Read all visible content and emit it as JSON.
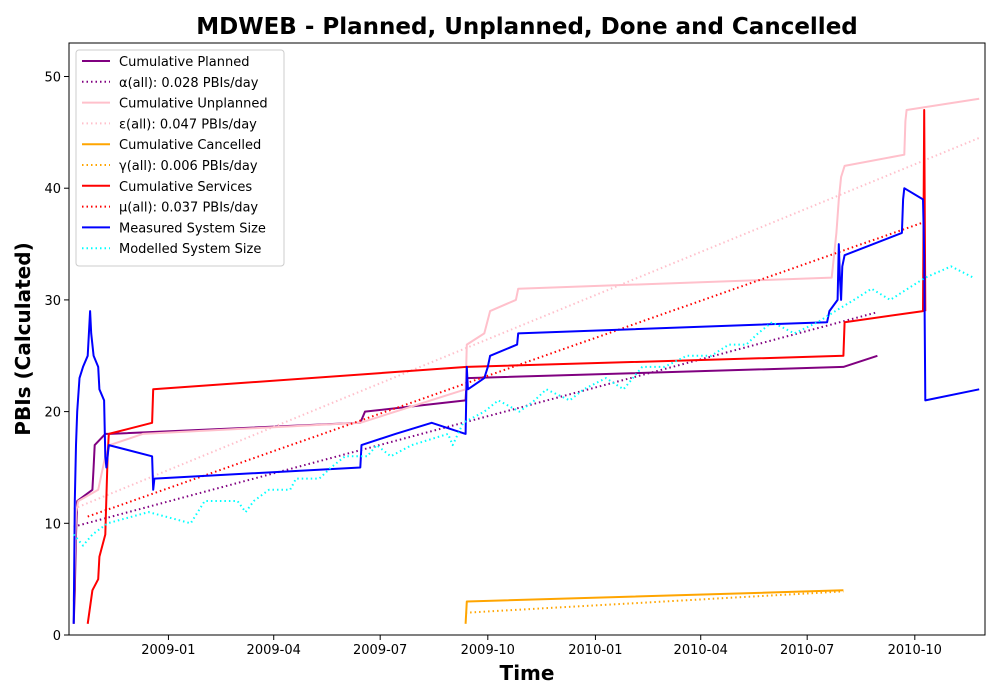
{
  "chart_data": {
    "type": "line",
    "title": "MDWEB - Planned, Unplanned, Done  and Cancelled",
    "xlabel": "Time",
    "ylabel": "PBIs (Calculated)",
    "xlim": [
      "2008-10-08",
      "2010-11-30"
    ],
    "ylim": [
      0,
      53
    ],
    "x_ticks": [
      "2009-01-01",
      "2009-04-01",
      "2009-07-01",
      "2009-10-01",
      "2010-01-01",
      "2010-04-01",
      "2010-07-01",
      "2010-10-01"
    ],
    "x_tick_labels": [
      "2009-01",
      "2009-04",
      "2009-07",
      "2009-10",
      "2010-01",
      "2010-04",
      "2010-07",
      "2010-10"
    ],
    "y_ticks": [
      0,
      10,
      20,
      30,
      40,
      50
    ],
    "y_tick_labels": [
      "0",
      "10",
      "20",
      "30",
      "40",
      "50"
    ],
    "legend_position": "top-left",
    "grid": false,
    "series": [
      {
        "name": "Cumulative Planned",
        "color": "#800080",
        "style": "solid",
        "points": [
          [
            "2008-10-12",
            1
          ],
          [
            "2008-10-13",
            4
          ],
          [
            "2008-10-14",
            9
          ],
          [
            "2008-10-15",
            12
          ],
          [
            "2008-10-28",
            13
          ],
          [
            "2008-10-29",
            15
          ],
          [
            "2008-10-30",
            17
          ],
          [
            "2008-11-08",
            18
          ],
          [
            "2008-11-12",
            18
          ],
          [
            "2009-06-14",
            19
          ],
          [
            "2009-06-18",
            20
          ],
          [
            "2009-09-12",
            21
          ],
          [
            "2009-09-13",
            23
          ],
          [
            "2010-08-01",
            24
          ],
          [
            "2010-08-30",
            25
          ]
        ]
      },
      {
        "name": "α(all): 0.028 PBIs/day",
        "color": "#800080",
        "style": "dotted",
        "points": [
          [
            "2008-10-12",
            9.7
          ],
          [
            "2010-08-30",
            28.9
          ]
        ]
      },
      {
        "name": "Cumulative Unplanned",
        "color": "#ffc0cb",
        "style": "solid",
        "points": [
          [
            "2008-10-12",
            3
          ],
          [
            "2008-10-14",
            11
          ],
          [
            "2008-10-16",
            12
          ],
          [
            "2008-11-02",
            13
          ],
          [
            "2008-11-08",
            16
          ],
          [
            "2008-11-12",
            17
          ],
          [
            "2008-12-10",
            18
          ],
          [
            "2009-06-14",
            19
          ],
          [
            "2009-09-12",
            22
          ],
          [
            "2009-09-13",
            26
          ],
          [
            "2009-09-28",
            27
          ],
          [
            "2009-10-03",
            29
          ],
          [
            "2009-10-25",
            30
          ],
          [
            "2009-10-27",
            31
          ],
          [
            "2010-07-22",
            32
          ],
          [
            "2010-07-26",
            36
          ],
          [
            "2010-07-28",
            39
          ],
          [
            "2010-07-30",
            41
          ],
          [
            "2010-08-02",
            42
          ],
          [
            "2010-09-22",
            43
          ],
          [
            "2010-09-23",
            46
          ],
          [
            "2010-09-24",
            47
          ],
          [
            "2010-11-25",
            48
          ]
        ]
      },
      {
        "name": "ε(all): 0.047 PBIs/day",
        "color": "#ffc0cb",
        "style": "dotted",
        "points": [
          [
            "2008-10-12",
            11.3
          ],
          [
            "2010-11-25",
            44.5
          ]
        ]
      },
      {
        "name": "Cumulative Cancelled",
        "color": "#ffa500",
        "style": "solid",
        "points": [
          [
            "2009-09-12",
            1
          ],
          [
            "2009-09-13",
            3
          ],
          [
            "2010-08-01",
            4
          ]
        ]
      },
      {
        "name": "γ(all): 0.006 PBIs/day",
        "color": "#ffa500",
        "style": "dotted",
        "points": [
          [
            "2009-09-12",
            2
          ],
          [
            "2010-08-01",
            3.9
          ]
        ]
      },
      {
        "name": "Cumulative Services",
        "color": "#ff0000",
        "style": "solid",
        "points": [
          [
            "2008-10-24",
            1
          ],
          [
            "2008-10-28",
            4
          ],
          [
            "2008-11-02",
            5
          ],
          [
            "2008-11-03",
            7
          ],
          [
            "2008-11-08",
            9
          ],
          [
            "2008-11-10",
            16
          ],
          [
            "2008-11-11",
            18
          ],
          [
            "2008-12-18",
            19
          ],
          [
            "2008-12-19",
            22
          ],
          [
            "2009-09-13",
            24
          ],
          [
            "2010-08-01",
            25
          ],
          [
            "2010-08-02",
            28
          ],
          [
            "2010-10-08",
            29
          ],
          [
            "2010-10-09",
            47
          ],
          [
            "2010-10-10",
            29
          ]
        ]
      },
      {
        "name": "μ(all): 0.037 PBIs/day",
        "color": "#ff0000",
        "style": "dotted",
        "points": [
          [
            "2008-10-24",
            10.6
          ],
          [
            "2010-10-10",
            37
          ]
        ]
      },
      {
        "name": "Measured System Size",
        "color": "#0000ff",
        "style": "solid",
        "points": [
          [
            "2008-10-12",
            1
          ],
          [
            "2008-10-13",
            12
          ],
          [
            "2008-10-14",
            17
          ],
          [
            "2008-10-15",
            20
          ],
          [
            "2008-10-17",
            23
          ],
          [
            "2008-10-20",
            24
          ],
          [
            "2008-10-24",
            25
          ],
          [
            "2008-10-26",
            29
          ],
          [
            "2008-10-27",
            27
          ],
          [
            "2008-10-29",
            25
          ],
          [
            "2008-11-02",
            24
          ],
          [
            "2008-11-03",
            22
          ],
          [
            "2008-11-07",
            21
          ],
          [
            "2008-11-08",
            16
          ],
          [
            "2008-11-09",
            15
          ],
          [
            "2008-11-11",
            17
          ],
          [
            "2008-12-18",
            16
          ],
          [
            "2008-12-19",
            13
          ],
          [
            "2008-12-20",
            14
          ],
          [
            "2009-06-14",
            15
          ],
          [
            "2009-06-15",
            17
          ],
          [
            "2009-07-14",
            18
          ],
          [
            "2009-08-14",
            19
          ],
          [
            "2009-09-12",
            18
          ],
          [
            "2009-09-13",
            24
          ],
          [
            "2009-09-14",
            22
          ],
          [
            "2009-09-28",
            23
          ],
          [
            "2009-10-01",
            24
          ],
          [
            "2009-10-03",
            25
          ],
          [
            "2009-10-26",
            26
          ],
          [
            "2009-10-27",
            27
          ],
          [
            "2010-07-18",
            28
          ],
          [
            "2010-07-20",
            29
          ],
          [
            "2010-07-27",
            30
          ],
          [
            "2010-07-28",
            35
          ],
          [
            "2010-07-29",
            32
          ],
          [
            "2010-07-30",
            30
          ],
          [
            "2010-07-31",
            33
          ],
          [
            "2010-08-02",
            34
          ],
          [
            "2010-09-20",
            36
          ],
          [
            "2010-09-21",
            39
          ],
          [
            "2010-09-22",
            40
          ],
          [
            "2010-10-08",
            39
          ],
          [
            "2010-10-09",
            34
          ],
          [
            "2010-10-10",
            21
          ],
          [
            "2010-11-25",
            22
          ]
        ]
      },
      {
        "name": "Modelled System Size",
        "color": "#00ffff",
        "style": "dotted",
        "points": [
          [
            "2008-10-12",
            9
          ],
          [
            "2008-10-20",
            8
          ],
          [
            "2008-10-28",
            9
          ],
          [
            "2008-11-10",
            10
          ],
          [
            "2008-12-15",
            11
          ],
          [
            "2009-01-20",
            10
          ],
          [
            "2009-02-01",
            12
          ],
          [
            "2009-03-01",
            12
          ],
          [
            "2009-03-08",
            11
          ],
          [
            "2009-03-15",
            12
          ],
          [
            "2009-03-28",
            13
          ],
          [
            "2009-04-15",
            13
          ],
          [
            "2009-04-20",
            14
          ],
          [
            "2009-05-10",
            14
          ],
          [
            "2009-05-20",
            15
          ],
          [
            "2009-06-01",
            16
          ],
          [
            "2009-06-20",
            16
          ],
          [
            "2009-06-28",
            17
          ],
          [
            "2009-07-10",
            16
          ],
          [
            "2009-07-28",
            17
          ],
          [
            "2009-08-28",
            18
          ],
          [
            "2009-09-01",
            17
          ],
          [
            "2009-09-10",
            19
          ],
          [
            "2009-09-28",
            20
          ],
          [
            "2009-10-10",
            21
          ],
          [
            "2009-10-28",
            20
          ],
          [
            "2009-11-10",
            21
          ],
          [
            "2009-11-20",
            22
          ],
          [
            "2009-12-10",
            21
          ],
          [
            "2009-12-22",
            22
          ],
          [
            "2010-01-10",
            23
          ],
          [
            "2010-01-25",
            22
          ],
          [
            "2010-02-10",
            24
          ],
          [
            "2010-03-01",
            24
          ],
          [
            "2010-03-20",
            25
          ],
          [
            "2010-04-10",
            25
          ],
          [
            "2010-04-25",
            26
          ],
          [
            "2010-05-10",
            26
          ],
          [
            "2010-05-20",
            27
          ],
          [
            "2010-06-01",
            28
          ],
          [
            "2010-06-20",
            27
          ],
          [
            "2010-07-10",
            28
          ],
          [
            "2010-07-25",
            29
          ],
          [
            "2010-08-10",
            30
          ],
          [
            "2010-08-25",
            31
          ],
          [
            "2010-09-10",
            30
          ],
          [
            "2010-09-25",
            31
          ],
          [
            "2010-10-10",
            32
          ],
          [
            "2010-11-01",
            33
          ],
          [
            "2010-11-20",
            32
          ]
        ]
      }
    ]
  }
}
